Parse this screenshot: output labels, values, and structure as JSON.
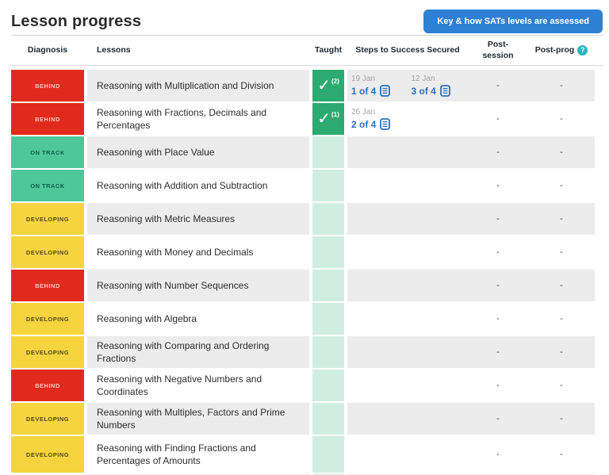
{
  "page": {
    "title": "Lesson progress"
  },
  "header": {
    "key_button_label": "Key & how SATs levels are assessed"
  },
  "icons": {
    "question_glyph": "?",
    "check_glyph": "✓",
    "question_icon_name": "help-icon",
    "check_icon_name": "taught-check-icon",
    "doc_icon_name": "steps-doc-icon"
  },
  "colors": {
    "button_blue": "#2e80d4",
    "link_blue": "#2d6fc0",
    "behind_red": "#e12a1c",
    "on_track_teal": "#4ec89b",
    "developing_yellow": "#f6d43e",
    "taught_green": "#2bab70",
    "taught_band_teal": "#cfeee1",
    "row_shade_gray": "#ececec",
    "help_icon_teal": "#2ab5c3"
  },
  "table": {
    "columns": {
      "diagnosis": "Diagnosis",
      "lessons": "Lessons",
      "taught": "Taught",
      "steps": "Steps to Success Secured",
      "post_session": "Post-session",
      "post_prog": "Post-prog"
    },
    "rows": [
      {
        "diagnosis": "BEHIND",
        "status_key": "behind",
        "lesson": "Reasoning with Multiplication and Division",
        "taught_checked": true,
        "taught_count": "(2)",
        "steps": [
          {
            "date": "19 Jan",
            "secured": "1 of 4"
          },
          {
            "date": "12 Jan",
            "secured": "3 of 4"
          }
        ],
        "post_session": "-",
        "post_prog": "-"
      },
      {
        "diagnosis": "BEHIND",
        "status_key": "behind",
        "lesson": "Reasoning with Fractions, Decimals and Percentages",
        "taught_checked": true,
        "taught_count": "(1)",
        "steps": [
          {
            "date": "26 Jan",
            "secured": "2 of 4"
          }
        ],
        "post_session": "-",
        "post_prog": "-"
      },
      {
        "diagnosis": "ON TRACK",
        "status_key": "ontrack",
        "lesson": "Reasoning with Place Value",
        "taught_checked": false,
        "taught_count": "",
        "steps": [],
        "post_session": "-",
        "post_prog": "-"
      },
      {
        "diagnosis": "ON TRACK",
        "status_key": "ontrack",
        "lesson": "Reasoning with Addition and Subtraction",
        "taught_checked": false,
        "taught_count": "",
        "steps": [],
        "post_session": "-",
        "post_prog": "-"
      },
      {
        "diagnosis": "DEVELOPING",
        "status_key": "developing",
        "lesson": "Reasoning with Metric Measures",
        "taught_checked": false,
        "taught_count": "",
        "steps": [],
        "post_session": "-",
        "post_prog": "-"
      },
      {
        "diagnosis": "DEVELOPING",
        "status_key": "developing",
        "lesson": "Reasoning with Money and Decimals",
        "taught_checked": false,
        "taught_count": "",
        "steps": [],
        "post_session": "-",
        "post_prog": "-"
      },
      {
        "diagnosis": "BEHIND",
        "status_key": "behind",
        "lesson": "Reasoning with Number Sequences",
        "taught_checked": false,
        "taught_count": "",
        "steps": [],
        "post_session": "-",
        "post_prog": "-"
      },
      {
        "diagnosis": "DEVELOPING",
        "status_key": "developing",
        "lesson": "Reasoning with Algebra",
        "taught_checked": false,
        "taught_count": "",
        "steps": [],
        "post_session": "-",
        "post_prog": "-"
      },
      {
        "diagnosis": "DEVELOPING",
        "status_key": "developing",
        "lesson": "Reasoning with Comparing and Ordering Fractions",
        "taught_checked": false,
        "taught_count": "",
        "steps": [],
        "post_session": "-",
        "post_prog": "-"
      },
      {
        "diagnosis": "BEHIND",
        "status_key": "behind",
        "lesson": "Reasoning with Negative Numbers and Coordinates",
        "taught_checked": false,
        "taught_count": "",
        "steps": [],
        "post_session": "-",
        "post_prog": "-"
      },
      {
        "diagnosis": "DEVELOPING",
        "status_key": "developing",
        "lesson": "Reasoning with Multiples, Factors and Prime Numbers",
        "taught_checked": false,
        "taught_count": "",
        "steps": [],
        "post_session": "-",
        "post_prog": "-"
      },
      {
        "diagnosis": "DEVELOPING",
        "status_key": "developing",
        "lesson": "Reasoning with Finding Fractions and Percentages of Amounts",
        "taught_checked": false,
        "taught_count": "",
        "steps": [],
        "post_session": "-",
        "post_prog": "-"
      }
    ]
  }
}
